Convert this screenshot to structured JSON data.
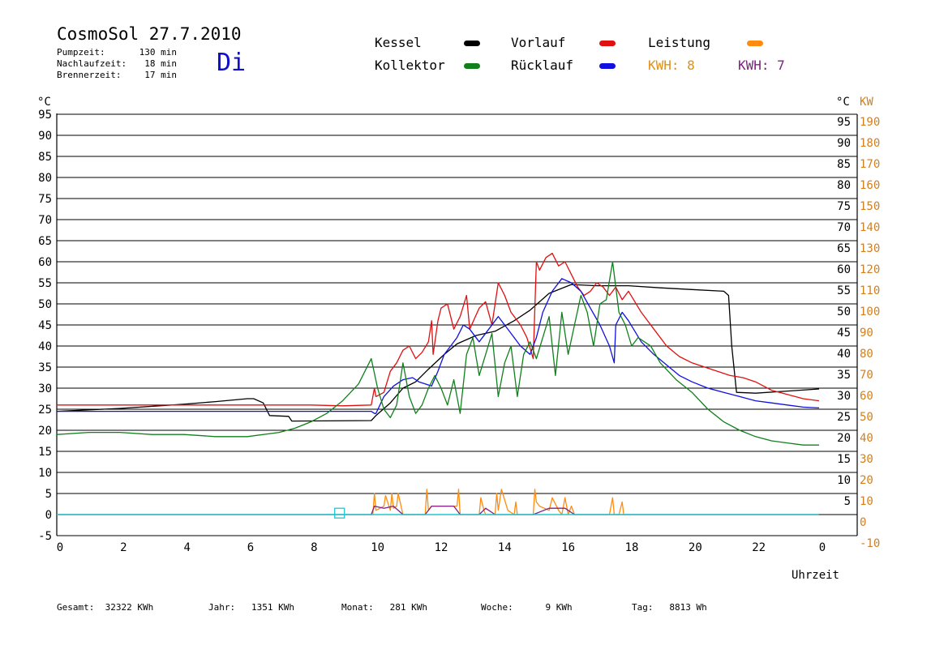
{
  "header": {
    "title": "CosmoSol 27.7.2010",
    "weekday": "Di",
    "pumpzeit": {
      "label": "Pumpzeit:",
      "value": "130 min"
    },
    "nachlaufzeit": {
      "label": "Nachlaufzeit:",
      "value": "18 min"
    },
    "brennerzeit": {
      "label": "Brennerzeit:",
      "value": "17 min"
    }
  },
  "legend": {
    "kessel": {
      "label": "Kessel",
      "color": "#000000"
    },
    "vorlauf": {
      "label": "Vorlauf",
      "color": "#e01010"
    },
    "leistung": {
      "label": "Leistung",
      "color": "#ff8c10"
    },
    "kollektor": {
      "label": "Kollektor",
      "color": "#10801c"
    },
    "ruecklauf": {
      "label": "Rücklauf",
      "color": "#1010e0"
    },
    "kwh1": {
      "label": "KWH: 8",
      "color": "#e0901c"
    },
    "kwh2": {
      "label": "KWH: 7",
      "color": "#802080"
    }
  },
  "footer": {
    "gesamt": {
      "label": "Gesamt:",
      "value": "32322 KWh"
    },
    "jahr": {
      "label": "Jahr:",
      "value": "1351 KWh"
    },
    "monat": {
      "label": "Monat:",
      "value": "281 KWh"
    },
    "woche": {
      "label": "Woche:",
      "value": "9 KWh"
    },
    "tag": {
      "label": "Tag:",
      "value": "8813 Wh"
    }
  },
  "chart_data": {
    "type": "line",
    "xlabel": "Uhrzeit",
    "ylabel_left": "°C",
    "ylabel_right": "°C",
    "ylabel_right2": "KW",
    "xlim": [
      0,
      24
    ],
    "ylim": [
      -5,
      95
    ],
    "y2lim": [
      -10,
      190
    ],
    "x_ticks": [
      "0",
      "2",
      "4",
      "6",
      "8",
      "10",
      "12",
      "14",
      "16",
      "18",
      "20",
      "22",
      "0"
    ],
    "y_ticks_left": [
      "95",
      "90",
      "85",
      "80",
      "75",
      "70",
      "65",
      "60",
      "55",
      "50",
      "45",
      "40",
      "35",
      "30",
      "25",
      "20",
      "15",
      "10",
      "5",
      "0",
      "-5"
    ],
    "y_ticks_right": [
      "95",
      "90",
      "85",
      "80",
      "75",
      "70",
      "65",
      "60",
      "55",
      "50",
      "45",
      "40",
      "35",
      "30",
      "25",
      "20",
      "15",
      "10",
      "5"
    ],
    "y_ticks_kw": [
      "190",
      "180",
      "170",
      "160",
      "150",
      "140",
      "130",
      "120",
      "110",
      "100",
      "90",
      "80",
      "70",
      "60",
      "50",
      "40",
      "30",
      "20",
      "10",
      "0",
      "-10"
    ],
    "grid": true,
    "series": [
      {
        "key": "kessel",
        "name": "Kessel",
        "color": "#000000",
        "x": [
          0,
          2,
          4,
          5,
          6,
          6.2,
          6.5,
          6.7,
          7.3,
          7.4,
          9.9,
          10.05,
          10.5,
          10.9,
          11.3,
          11.7,
          12.2,
          12.6,
          13.2,
          13.8,
          14.4,
          14.9,
          15.5,
          16.2,
          17.0,
          18.0,
          19.0,
          20.0,
          21.0,
          21.15,
          21.25,
          21.4,
          22,
          23,
          24
        ],
        "y": [
          24.5,
          25.2,
          26.2,
          26.8,
          27.5,
          27.5,
          26.5,
          23.5,
          23.3,
          22.2,
          22.3,
          23.5,
          26.5,
          30.0,
          31.5,
          34.5,
          38.0,
          40.5,
          42.5,
          43.5,
          46.0,
          48.5,
          52.5,
          54.6,
          54.3,
          54.3,
          53.8,
          53.4,
          53.0,
          52.0,
          40.0,
          29.0,
          28.8,
          29.3,
          29.8
        ]
      },
      {
        "key": "vorlauf",
        "name": "Vorlauf",
        "color": "#e01010",
        "x": [
          0,
          8,
          9,
          9.9,
          10.0,
          10.05,
          10.3,
          10.5,
          10.7,
          10.9,
          11.1,
          11.3,
          11.5,
          11.7,
          11.8,
          11.85,
          12.0,
          12.1,
          12.3,
          12.5,
          12.7,
          12.9,
          13.0,
          13.3,
          13.5,
          13.7,
          13.9,
          14.1,
          14.3,
          14.6,
          14.8,
          15.0,
          15.1,
          15.2,
          15.4,
          15.6,
          15.8,
          16.0,
          16.2,
          16.4,
          16.6,
          16.8,
          17.0,
          17.2,
          17.4,
          17.6,
          17.8,
          18.0,
          18.4,
          18.8,
          19.2,
          19.6,
          20,
          20.4,
          20.8,
          21.2,
          21.6,
          22,
          22.5,
          23,
          23.5,
          24
        ],
        "y": [
          26.0,
          26.0,
          25.8,
          26.0,
          30.0,
          28.0,
          29.0,
          34.0,
          36.0,
          39.0,
          40.0,
          37.0,
          38.5,
          41.0,
          46.0,
          38.0,
          46.0,
          49.0,
          50.0,
          44.0,
          47.0,
          52.0,
          44.0,
          49.0,
          50.5,
          45.0,
          55.0,
          52.0,
          48.0,
          45.0,
          42.0,
          37.0,
          60.0,
          58.0,
          61.0,
          62.0,
          59.0,
          60.0,
          57.0,
          54.0,
          52.0,
          53.0,
          55.0,
          54.0,
          52.0,
          54.0,
          51.0,
          53.0,
          48.0,
          44.0,
          40.0,
          37.5,
          36.0,
          35.0,
          34.0,
          33.0,
          32.5,
          31.5,
          29.5,
          28.5,
          27.5,
          27.0
        ]
      },
      {
        "key": "ruecklauf",
        "name": "Rücklauf",
        "color": "#1010e0",
        "x": [
          0,
          4,
          6,
          8,
          9.9,
          10.0,
          10.05,
          10.3,
          10.6,
          10.9,
          11.2,
          11.4,
          11.6,
          11.8,
          12.0,
          12.2,
          12.4,
          12.6,
          12.8,
          13.0,
          13.3,
          13.6,
          13.9,
          14.1,
          14.3,
          14.6,
          14.9,
          15.1,
          15.3,
          15.6,
          15.9,
          16.2,
          16.5,
          16.8,
          17.1,
          17.4,
          17.55,
          17.6,
          17.8,
          18.0,
          18.4,
          18.8,
          19.2,
          19.6,
          20.0,
          20.5,
          21.0,
          21.5,
          22,
          22.5,
          23,
          23.5,
          24
        ],
        "y": [
          24.5,
          24.5,
          24.5,
          24.5,
          24.5,
          24.0,
          24.0,
          28.0,
          30.5,
          32.0,
          32.5,
          31.5,
          31.0,
          30.5,
          34.0,
          38.0,
          40.0,
          42.0,
          45.0,
          44.0,
          41.0,
          44.0,
          47.0,
          45.0,
          43.0,
          40.0,
          38.0,
          42.0,
          48.0,
          53.0,
          56.0,
          55.0,
          53.0,
          49.0,
          45.0,
          40.0,
          36.0,
          45.0,
          48.0,
          46.0,
          41.0,
          38.0,
          35.5,
          33.0,
          31.5,
          30.0,
          29.0,
          28.0,
          27.0,
          26.5,
          26.0,
          25.5,
          25.3
        ]
      },
      {
        "key": "kollektor",
        "name": "Kollektor",
        "color": "#10801c",
        "x": [
          0,
          1,
          2,
          3,
          4,
          5,
          6,
          7,
          7.5,
          8,
          8.5,
          9,
          9.5,
          9.9,
          10.1,
          10.3,
          10.5,
          10.7,
          10.9,
          11.1,
          11.3,
          11.5,
          11.7,
          11.9,
          12.1,
          12.3,
          12.5,
          12.7,
          12.9,
          13.1,
          13.3,
          13.5,
          13.7,
          13.9,
          14.1,
          14.3,
          14.5,
          14.7,
          14.9,
          15.1,
          15.3,
          15.5,
          15.7,
          15.9,
          16.1,
          16.3,
          16.5,
          16.7,
          16.9,
          17.1,
          17.3,
          17.5,
          17.7,
          17.9,
          18.1,
          18.3,
          18.5,
          18.7,
          19,
          19.5,
          20,
          20.5,
          21,
          21.5,
          22,
          22.5,
          23,
          23.5,
          24
        ],
        "y": [
          19.0,
          19.5,
          19.5,
          19.0,
          19.0,
          18.5,
          18.5,
          19.5,
          20.5,
          22.0,
          24.0,
          27.0,
          31.0,
          37.0,
          30.0,
          25.0,
          23.0,
          26.0,
          36.0,
          28.0,
          24.0,
          26.0,
          30.0,
          33.0,
          30.0,
          26.0,
          32.0,
          24.0,
          38.0,
          42.0,
          33.0,
          38.0,
          43.0,
          28.0,
          36.0,
          40.0,
          28.0,
          38.0,
          41.0,
          37.0,
          42.0,
          47.0,
          33.0,
          48.0,
          38.0,
          45.0,
          52.0,
          48.0,
          40.0,
          50.0,
          51.0,
          60.0,
          48.0,
          45.0,
          40.0,
          42.0,
          41.0,
          40.0,
          36.0,
          32.0,
          29.0,
          25.0,
          22.0,
          20.0,
          18.5,
          17.5,
          17.0,
          16.5,
          16.5
        ]
      },
      {
        "key": "leistung",
        "name": "Leistung",
        "color": "#ff8c10",
        "x": [
          0,
          9.9,
          9.95,
          10.0,
          10.05,
          10.3,
          10.35,
          10.5,
          10.55,
          10.6,
          10.7,
          10.75,
          10.9,
          11.6,
          11.65,
          11.7,
          11.8,
          12.0,
          12.5,
          12.6,
          12.65,
          12.7,
          13.0,
          13.3,
          13.35,
          13.45,
          13.5,
          13.8,
          13.85,
          13.9,
          14.0,
          14.2,
          14.4,
          14.45,
          14.5,
          15.0,
          15.05,
          15.1,
          15.2,
          15.5,
          15.6,
          15.8,
          15.9,
          16.0,
          16.1,
          16.2,
          16.3,
          17.4,
          17.5,
          17.55,
          17.6,
          17.7,
          17.8,
          17.85,
          17.9,
          24
        ],
        "y": [
          0,
          0,
          0,
          5,
          1,
          2,
          4.5,
          1,
          5,
          1.5,
          2,
          5,
          0,
          0,
          6,
          1,
          2,
          2,
          2,
          2,
          6,
          0,
          0,
          0,
          4,
          1,
          0,
          0,
          5,
          1,
          6,
          1,
          0,
          3,
          0,
          0,
          6,
          3,
          2,
          1,
          4,
          1,
          0,
          4,
          0,
          2,
          0,
          0,
          4,
          0,
          0,
          0,
          3,
          0,
          0,
          0
        ]
      },
      {
        "key": "kwh",
        "name": "KWH",
        "color": "#802080",
        "x": [
          0,
          9.9,
          10.0,
          10.3,
          10.6,
          10.9,
          11.6,
          11.8,
          12.5,
          12.7,
          13.3,
          13.5,
          13.8,
          14.4,
          14.5,
          15.0,
          15.5,
          16.0,
          16.3,
          17.4,
          17.9,
          24
        ],
        "y": [
          0,
          0,
          2,
          1.5,
          2,
          0,
          0,
          2,
          2,
          0,
          0,
          1.5,
          0,
          0,
          0,
          0,
          1.5,
          1.5,
          0,
          0,
          0,
          0
        ]
      },
      {
        "key": "cyan",
        "name": "",
        "color": "#20c8d0",
        "x": [
          0,
          24
        ],
        "y": [
          0,
          0
        ]
      }
    ]
  }
}
